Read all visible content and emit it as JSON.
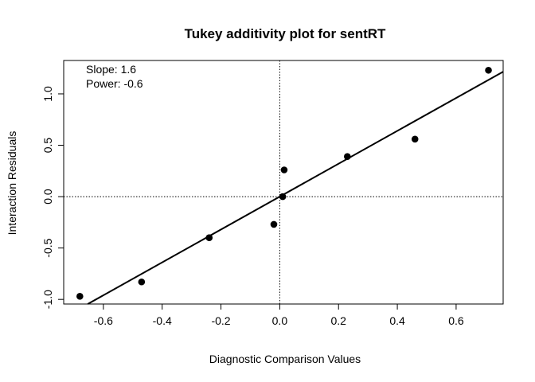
{
  "chart_data": {
    "type": "scatter",
    "title": "Tukey additivity plot for sentRT",
    "xlabel": "Diagnostic Comparison Values",
    "ylabel": "Interaction Residuals",
    "xlim": [
      -0.735,
      0.76
    ],
    "ylim": [
      -1.045,
      1.325
    ],
    "x_ticks": [
      -0.6,
      -0.4,
      -0.2,
      0.0,
      0.2,
      0.4,
      0.6
    ],
    "x_tick_labels": [
      "-0.6",
      "-0.4",
      "-0.2",
      "0.0",
      "0.2",
      "0.4",
      "0.6"
    ],
    "y_ticks": [
      -1.0,
      -0.5,
      0.0,
      0.5,
      1.0
    ],
    "y_tick_labels": [
      "-1.0",
      "-0.5",
      "0.0",
      "0.5",
      "1.0"
    ],
    "points": [
      {
        "x": -0.68,
        "y": -0.97
      },
      {
        "x": -0.47,
        "y": -0.83
      },
      {
        "x": -0.24,
        "y": -0.4
      },
      {
        "x": -0.02,
        "y": -0.27
      },
      {
        "x": 0.01,
        "y": 0.0
      },
      {
        "x": 0.015,
        "y": 0.26
      },
      {
        "x": 0.23,
        "y": 0.39
      },
      {
        "x": 0.46,
        "y": 0.56
      },
      {
        "x": 0.71,
        "y": 1.23
      }
    ],
    "fit_line": {
      "slope": 1.6,
      "intercept": 0.0
    },
    "reference_lines": {
      "h": 0.0,
      "v": 0.0,
      "style": "dotted"
    },
    "annotations": [
      "Slope: 1.6",
      "Power: -0.6"
    ],
    "grid": false,
    "colors": {
      "points": "#000000",
      "line": "#000000",
      "axes": "#000000"
    }
  }
}
